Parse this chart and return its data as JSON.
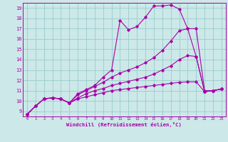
{
  "xlabel": "Windchill (Refroidissement éolien,°C)",
  "xlim": [
    -0.5,
    23.5
  ],
  "ylim": [
    8.5,
    19.5
  ],
  "yticks": [
    9,
    10,
    11,
    12,
    13,
    14,
    15,
    16,
    17,
    18,
    19
  ],
  "xticks": [
    0,
    1,
    2,
    3,
    4,
    5,
    6,
    7,
    8,
    9,
    10,
    11,
    12,
    13,
    14,
    15,
    16,
    17,
    18,
    19,
    20,
    21,
    22,
    23
  ],
  "bg_color": "#cce8e8",
  "line_color": "#aa00aa",
  "grid_color": "#99cccc",
  "lines_x": [
    0,
    1,
    2,
    3,
    4,
    5,
    6,
    7,
    8,
    9,
    10,
    11,
    12,
    13,
    14,
    15,
    16,
    17,
    18,
    19,
    20,
    21,
    22,
    23
  ],
  "line1_y": [
    8.7,
    9.5,
    10.2,
    10.3,
    10.2,
    9.8,
    10.7,
    11.1,
    11.5,
    12.3,
    13.0,
    17.8,
    16.9,
    17.2,
    18.1,
    19.2,
    19.2,
    19.3,
    18.9,
    17.0,
    14.3,
    10.9,
    11.0,
    11.15
  ],
  "line2_y": [
    8.7,
    9.5,
    10.2,
    10.3,
    10.2,
    9.8,
    10.6,
    11.0,
    11.4,
    11.8,
    12.3,
    12.7,
    13.0,
    13.3,
    13.7,
    14.2,
    14.9,
    15.8,
    16.8,
    17.0,
    17.0,
    11.0,
    11.0,
    11.15
  ],
  "line3_y": [
    8.7,
    9.5,
    10.2,
    10.3,
    10.2,
    9.8,
    10.3,
    10.7,
    11.0,
    11.2,
    11.5,
    11.7,
    11.9,
    12.1,
    12.3,
    12.6,
    13.0,
    13.4,
    14.0,
    14.4,
    14.3,
    10.9,
    11.0,
    11.15
  ],
  "line4_y": [
    8.7,
    9.5,
    10.2,
    10.3,
    10.2,
    9.8,
    10.2,
    10.4,
    10.6,
    10.8,
    11.0,
    11.1,
    11.2,
    11.3,
    11.4,
    11.5,
    11.6,
    11.7,
    11.8,
    11.85,
    11.85,
    10.9,
    11.0,
    11.15
  ]
}
